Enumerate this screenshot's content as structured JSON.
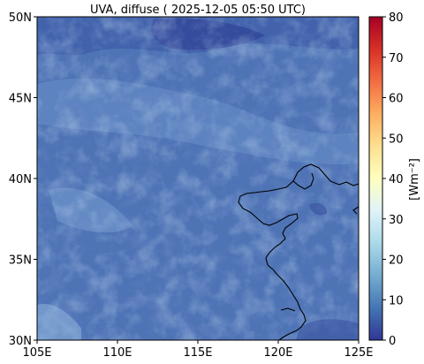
{
  "title": "UVA, diffuse ( 2025-12-05 05:50 UTC)",
  "map": {
    "lon_range": [
      105,
      125
    ],
    "lat_range": [
      30,
      50
    ],
    "x_ticks": [
      {
        "value": 105,
        "label": "105E"
      },
      {
        "value": 110,
        "label": "110E"
      },
      {
        "value": 115,
        "label": "115E"
      },
      {
        "value": 120,
        "label": "120E"
      },
      {
        "value": 125,
        "label": "125E"
      }
    ],
    "y_ticks": [
      {
        "value": 30,
        "label": "30N"
      },
      {
        "value": 35,
        "label": "35N"
      },
      {
        "value": 40,
        "label": "40N"
      },
      {
        "value": 45,
        "label": "45N"
      },
      {
        "value": 50,
        "label": "50N"
      }
    ],
    "background_color": "#4f74b6",
    "coastline_color": "#000000"
  },
  "colorbar": {
    "label": "[Wm⁻²]",
    "min": 0,
    "max": 80,
    "ticks": [
      {
        "value": 0,
        "label": "0"
      },
      {
        "value": 10,
        "label": "10"
      },
      {
        "value": 20,
        "label": "20"
      },
      {
        "value": 30,
        "label": "30"
      },
      {
        "value": 40,
        "label": "40"
      },
      {
        "value": 50,
        "label": "50"
      },
      {
        "value": 60,
        "label": "60"
      },
      {
        "value": 70,
        "label": "70"
      },
      {
        "value": 80,
        "label": "80"
      }
    ],
    "colormap": [
      "#313695",
      "#4575b4",
      "#74add1",
      "#abd9e9",
      "#e0f3f8",
      "#ffffbf",
      "#fee090",
      "#fdae61",
      "#f46d43",
      "#d73027",
      "#a50026"
    ]
  }
}
